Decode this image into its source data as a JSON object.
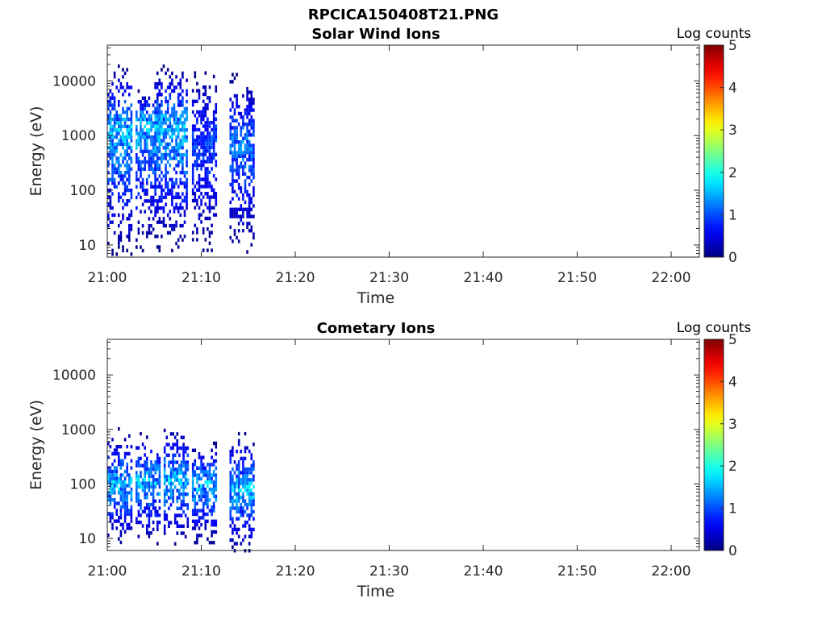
{
  "figure_title": "RPCICA150408T21.PNG",
  "chart_data": [
    {
      "type": "heatmap",
      "title": "Solar Wind Ions",
      "xlabel": "Time",
      "ylabel": "Energy (eV)",
      "x_ticks": [
        "21:00",
        "21:10",
        "21:20",
        "21:30",
        "21:40",
        "21:50",
        "22:00"
      ],
      "xlim": [
        "21:00",
        "22:03"
      ],
      "y_scale": "log",
      "y_ticks": [
        10,
        100,
        1000,
        10000
      ],
      "y_tick_labels": [
        "10",
        "100",
        "1000",
        "10000"
      ],
      "ylim": [
        6,
        45000
      ],
      "colorbar": {
        "label": "Log counts",
        "range": [
          0,
          5
        ],
        "ticks": [
          "0",
          "1",
          "2",
          "3",
          "4",
          "5"
        ],
        "colormap": "jet"
      },
      "bursts": [
        {
          "start": "21:00",
          "end": "21:02",
          "peak_energy_eV": 1400,
          "e_min_eV": 7,
          "e_max_eV": 20000,
          "peak_log_counts": 2.0
        },
        {
          "start": "21:03",
          "end": "21:05",
          "peak_energy_eV": 2000,
          "e_min_eV": 8,
          "e_max_eV": 7000,
          "peak_log_counts": 2.0
        },
        {
          "start": "21:05",
          "end": "21:08",
          "peak_energy_eV": 1500,
          "e_min_eV": 8,
          "e_max_eV": 20000,
          "peak_log_counts": 2.0
        },
        {
          "start": "21:09",
          "end": "21:11",
          "peak_energy_eV": 900,
          "e_min_eV": 8,
          "e_max_eV": 15000,
          "peak_log_counts": 1.3
        },
        {
          "start": "21:13",
          "end": "21:15",
          "peak_energy_eV": 800,
          "e_min_eV": 8,
          "e_max_eV": 14000,
          "peak_log_counts": 1.6
        }
      ]
    },
    {
      "type": "heatmap",
      "title": "Cometary Ions",
      "xlabel": "Time",
      "ylabel": "Energy (eV)",
      "x_ticks": [
        "21:00",
        "21:10",
        "21:20",
        "21:30",
        "21:40",
        "21:50",
        "22:00"
      ],
      "xlim": [
        "21:00",
        "22:03"
      ],
      "y_scale": "log",
      "y_ticks": [
        10,
        100,
        1000,
        10000
      ],
      "y_tick_labels": [
        "10",
        "100",
        "1000",
        "10000"
      ],
      "ylim": [
        6,
        45000
      ],
      "colorbar": {
        "label": "Log counts",
        "range": [
          0,
          5
        ],
        "ticks": [
          "0",
          "1",
          "2",
          "3",
          "4",
          "5"
        ],
        "colormap": "jet"
      },
      "bursts": [
        {
          "start": "21:00",
          "end": "21:02",
          "peak_energy_eV": 100,
          "e_min_eV": 8,
          "e_max_eV": 1100,
          "peak_log_counts": 2.0
        },
        {
          "start": "21:03",
          "end": "21:05",
          "peak_energy_eV": 120,
          "e_min_eV": 8,
          "e_max_eV": 900,
          "peak_log_counts": 2.0
        },
        {
          "start": "21:06",
          "end": "21:08",
          "peak_energy_eV": 130,
          "e_min_eV": 8,
          "e_max_eV": 1200,
          "peak_log_counts": 2.0
        },
        {
          "start": "21:09",
          "end": "21:11",
          "peak_energy_eV": 110,
          "e_min_eV": 8,
          "e_max_eV": 600,
          "peak_log_counts": 2.0
        },
        {
          "start": "21:13",
          "end": "21:15",
          "peak_energy_eV": 90,
          "e_min_eV": 6,
          "e_max_eV": 900,
          "peak_log_counts": 2.0
        }
      ]
    }
  ]
}
